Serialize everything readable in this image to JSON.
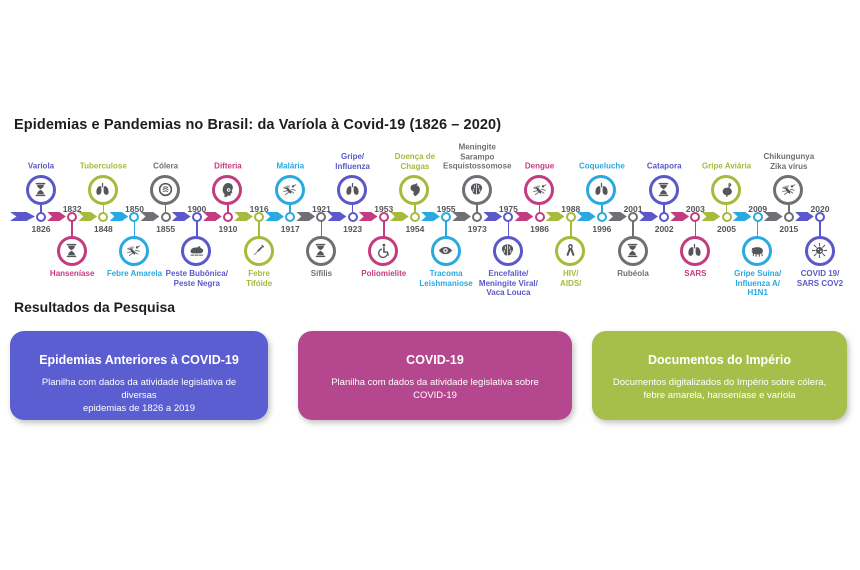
{
  "page": {
    "title": "Epidemias e Pandemias no Brasil: da Varíola à Covid-19 (1826 – 2020)",
    "results_heading": "Resultados da Pesquisa",
    "background": "#ffffff"
  },
  "palette": {
    "purple": "#5b58c9",
    "pink": "#c33c7f",
    "green": "#a6ba3b",
    "blue": "#2aa8e0",
    "gray": "#6f7073",
    "glyph_gray": "#55565a",
    "year_text": "#55565a",
    "heading_text": "#1e1e1c"
  },
  "timeline": {
    "events": [
      {
        "year": "1826",
        "label": "Varíola",
        "side": "top",
        "color": "purple",
        "icon": "hourglass-icon"
      },
      {
        "year": "1832",
        "label": "Hanseníase",
        "side": "bottom",
        "color": "pink",
        "icon": "hourglass-icon"
      },
      {
        "year": "1848",
        "label": "Tuberculose",
        "side": "top",
        "color": "green",
        "icon": "lungs-icon"
      },
      {
        "year": "1850",
        "label": "Febre Amarela",
        "side": "bottom",
        "color": "blue",
        "icon": "mosquito-icon"
      },
      {
        "year": "1855",
        "label": "Cólera",
        "side": "top",
        "color": "gray",
        "icon": "bacteria-icon"
      },
      {
        "year": "1900",
        "label": "Peste Bubônica/\nPeste Negra",
        "side": "bottom",
        "color": "purple",
        "icon": "rat-icon"
      },
      {
        "year": "1910",
        "label": "Difteria",
        "side": "top",
        "color": "pink",
        "icon": "head-icon"
      },
      {
        "year": "1916",
        "label": "Febre\nTifóide",
        "side": "bottom",
        "color": "green",
        "icon": "syringe-icon"
      },
      {
        "year": "1917",
        "label": "Malária",
        "side": "top",
        "color": "blue",
        "icon": "mosquito-icon"
      },
      {
        "year": "1921",
        "label": "Sífilis",
        "side": "bottom",
        "color": "gray",
        "icon": "hourglass-icon"
      },
      {
        "year": "1923",
        "label": "Gripe/\nInfluenza",
        "side": "top",
        "color": "purple",
        "icon": "lungs-icon"
      },
      {
        "year": "1953",
        "label": "Poliomielite",
        "side": "bottom",
        "color": "pink",
        "icon": "wheelchair-icon"
      },
      {
        "year": "1954",
        "label": "Doença de\nChagas",
        "side": "top",
        "color": "green",
        "icon": "heart-organ-icon"
      },
      {
        "year": "1955",
        "label": "Tracoma\nLeishmaniose",
        "side": "bottom",
        "color": "blue",
        "icon": "eye-icon"
      },
      {
        "year": "1973",
        "label": "Meningite\nSarampo\nEsquistossomose",
        "side": "top",
        "color": "gray",
        "icon": "brain-icon"
      },
      {
        "year": "1975",
        "label": "Encefalite/\nMeningite Viral/\nVaca Louca",
        "side": "bottom",
        "color": "purple",
        "icon": "brain-icon"
      },
      {
        "year": "1986",
        "label": "Dengue",
        "side": "top",
        "color": "pink",
        "icon": "mosquito-icon"
      },
      {
        "year": "1988",
        "label": "HIV/\nAIDS/",
        "side": "bottom",
        "color": "green",
        "icon": "ribbon-icon"
      },
      {
        "year": "1996",
        "label": "Coqueluche",
        "side": "top",
        "color": "blue",
        "icon": "lungs-icon"
      },
      {
        "year": "2001",
        "label": "Rubéola",
        "side": "bottom",
        "color": "gray",
        "icon": "hourglass-icon"
      },
      {
        "year": "2002",
        "label": "Catapora",
        "side": "top",
        "color": "purple",
        "icon": "hourglass-icon"
      },
      {
        "year": "2003",
        "label": "SARS",
        "side": "bottom",
        "color": "pink",
        "icon": "lungs-icon"
      },
      {
        "year": "2005",
        "label": "Gripe Aviária",
        "side": "top",
        "color": "green",
        "icon": "rooster-icon"
      },
      {
        "year": "2009",
        "label": "Gripe Suína/\nInfluenza A/\nH1N1",
        "side": "bottom",
        "color": "blue",
        "icon": "pig-icon"
      },
      {
        "year": "2015",
        "label": "Chikungunya\nZika vírus",
        "side": "top",
        "color": "gray",
        "icon": "mosquito-icon"
      },
      {
        "year": "2020",
        "label": "COVID 19/\nSARS COV2",
        "side": "bottom",
        "color": "purple",
        "icon": "virus-icon"
      }
    ]
  },
  "cards": [
    {
      "title": "Epidemias Anteriores à COVID-19",
      "body": "Planilha com dados da atividade legislativa de diversas\nepidemias de 1826 a 2019",
      "color": "#5b5ed1"
    },
    {
      "title": "COVID-19",
      "body": "Planilha com dados da atividade legislativa sobre\nCOVID-19",
      "color": "#b5478e"
    },
    {
      "title": "Documentos do Império",
      "body": "Documentos digitalizados do Império sobre cólera,\nfebre amarela, hanseníase e varíola",
      "color": "#a6bf4a"
    }
  ]
}
